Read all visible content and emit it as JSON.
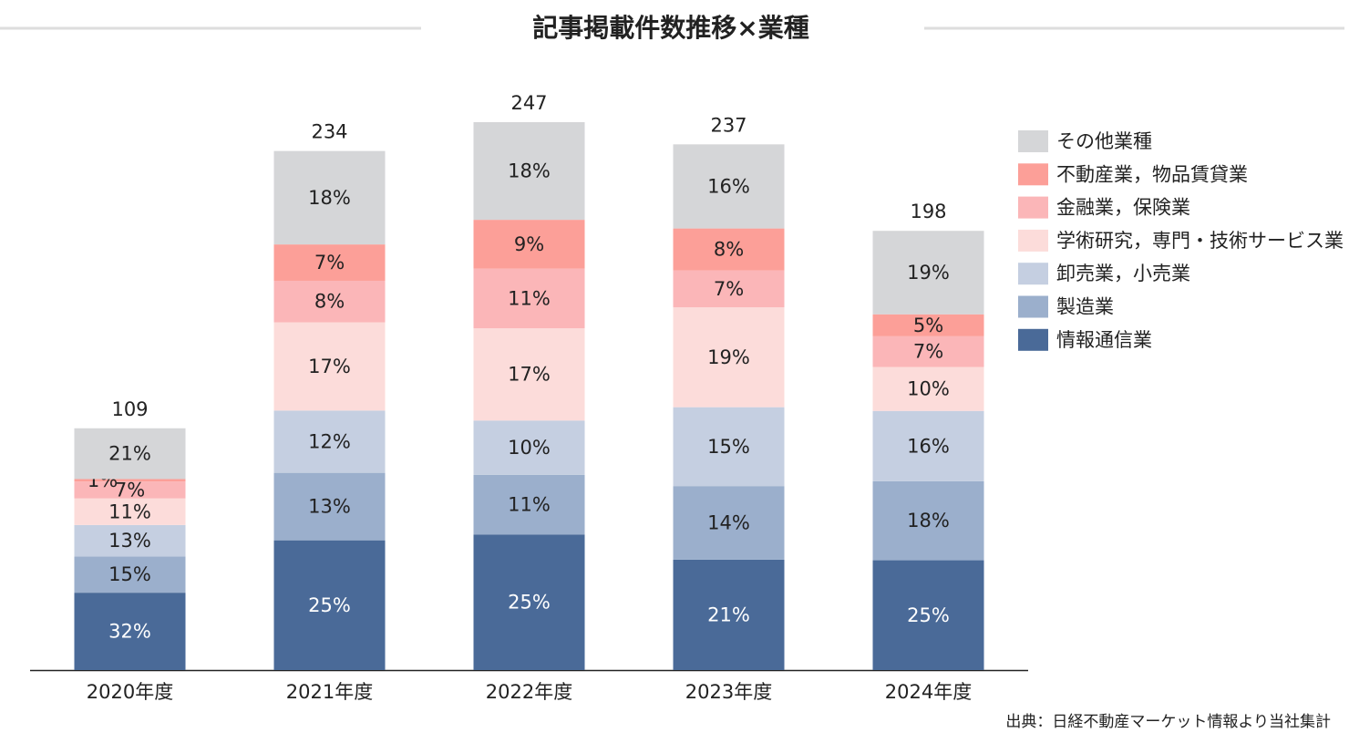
{
  "chart_data": {
    "type": "bar",
    "title": "記事掲載件数推移×業種",
    "categories": [
      "2020年度",
      "2021年度",
      "2022年度",
      "2023年度",
      "2024年度"
    ],
    "totals": [
      109,
      234,
      247,
      237,
      198
    ],
    "series": [
      {
        "name": "情報通信業",
        "color": "#4a6a98",
        "values": [
          32,
          25,
          25,
          21,
          25
        ],
        "value_labels": [
          "32%",
          "25%",
          "25%",
          "21%",
          "25%"
        ]
      },
      {
        "name": "製造業",
        "color": "#9bafcc",
        "values": [
          15,
          13,
          11,
          14,
          18
        ],
        "value_labels": [
          "15%",
          "13%",
          "11%",
          "14%",
          "18%"
        ]
      },
      {
        "name": "卸売業，小売業",
        "color": "#c5cfe1",
        "values": [
          13,
          12,
          10,
          15,
          16
        ],
        "value_labels": [
          "13%",
          "12%",
          "10%",
          "15%",
          "16%"
        ]
      },
      {
        "name": "学術研究，専門・技術サービス業",
        "color": "#fcdcda",
        "values": [
          11,
          17,
          17,
          19,
          10
        ],
        "value_labels": [
          "11%",
          "17%",
          "17%",
          "19%",
          "10%"
        ]
      },
      {
        "name": "金融業，保険業",
        "color": "#fbb6b8",
        "values": [
          7,
          8,
          11,
          7,
          7
        ],
        "value_labels": [
          "7%",
          "8%",
          "11%",
          "7%",
          "7%"
        ]
      },
      {
        "name": "不動産業，物品賃貸業",
        "color": "#fc9f98",
        "values": [
          1,
          7,
          9,
          8,
          5
        ],
        "value_labels": [
          "1%",
          "7%",
          "9%",
          "8%",
          "5%"
        ]
      },
      {
        "name": "その他業種",
        "color": "#d5d6d8",
        "values": [
          21,
          18,
          18,
          16,
          19
        ],
        "value_labels": [
          "21%",
          "18%",
          "18%",
          "16%",
          "19%"
        ]
      }
    ],
    "source": "出典：日経不動産マーケット情報より当社集計"
  }
}
